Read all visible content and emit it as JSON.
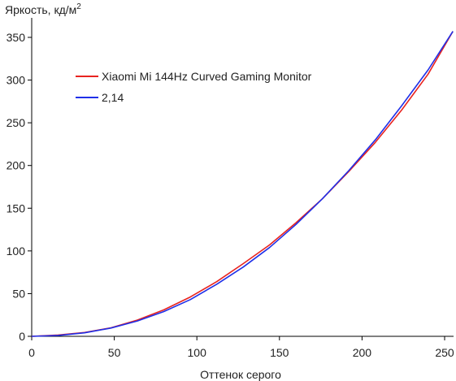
{
  "chart_data": {
    "type": "line",
    "ylabel": "Яркость, кд/м",
    "ylabel_sup": "2",
    "xlabel": "Оттенок серого",
    "xlim": [
      0,
      255
    ],
    "ylim": [
      0,
      360
    ],
    "xticks": [
      0,
      50,
      100,
      150,
      200,
      250
    ],
    "yticks": [
      0,
      50,
      100,
      150,
      200,
      250,
      300,
      350
    ],
    "grid": false,
    "legend_position": "top-left",
    "series": [
      {
        "name": "Xiaomi Mi 144Hz Curved Gaming Monitor",
        "color": "#e8231f",
        "x": [
          0,
          16,
          32,
          48,
          64,
          80,
          96,
          112,
          128,
          144,
          160,
          176,
          192,
          208,
          224,
          240,
          255
        ],
        "y": [
          0,
          1.5,
          4.5,
          10,
          19,
          31,
          46,
          64,
          85,
          107,
          133,
          161,
          193,
          227,
          265,
          307,
          357
        ]
      },
      {
        "name": "2,14",
        "color": "#1f2fe8",
        "x": [
          0,
          16,
          32,
          48,
          64,
          80,
          96,
          112,
          128,
          144,
          160,
          176,
          192,
          208,
          224,
          240,
          255
        ],
        "y": [
          0,
          1,
          4.1,
          9.7,
          18,
          29,
          43,
          61,
          81,
          104,
          131,
          161,
          194,
          230,
          270,
          312,
          357
        ]
      }
    ]
  }
}
